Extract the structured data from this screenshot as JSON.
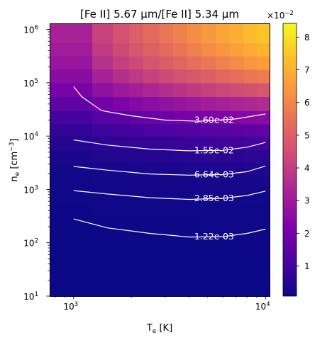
{
  "chart_data": {
    "type": "heatmap",
    "title": "[Fe II] 5.67 μm/[Fe II] 5.34 μm",
    "xlabel": "T_e [K]",
    "ylabel": "n_e [cm^-3]",
    "x_scale": "log",
    "y_scale": "log",
    "xlim": [
      750,
      10500
    ],
    "ylim": [
      10,
      1300000
    ],
    "x_ticks": [
      {
        "value": 1000,
        "label": "10",
        "exp": "3"
      },
      {
        "value": 10000,
        "label": "10",
        "exp": "4"
      }
    ],
    "y_ticks": [
      {
        "value": 10,
        "label": "10",
        "exp": "1"
      },
      {
        "value": 100,
        "label": "10",
        "exp": "2"
      },
      {
        "value": 1000,
        "label": "10",
        "exp": "3"
      },
      {
        "value": 10000,
        "label": "10",
        "exp": "4"
      },
      {
        "value": 100000,
        "label": "10",
        "exp": "5"
      },
      {
        "value": 1000000,
        "label": "10",
        "exp": "6"
      }
    ],
    "x_edges": [
      750,
      1250,
      1600,
      1950,
      2300,
      2800,
      3300,
      3900,
      4600,
      5500,
      6500,
      7700,
      9000,
      10500
    ],
    "y_edges": [
      10,
      17,
      30,
      55,
      100,
      180,
      320,
      560,
      1000,
      1800,
      3200,
      5600,
      10000,
      17000,
      30000,
      55000,
      100000,
      180000,
      320000,
      560000,
      1300000
    ],
    "colormap": "plasma",
    "grid": false,
    "colorbar": {
      "range": [
        0.0008,
        0.0842
      ],
      "ticks": [
        {
          "value": 0.01,
          "label": "1"
        },
        {
          "value": 0.02,
          "label": "2"
        },
        {
          "value": 0.03,
          "label": "3"
        },
        {
          "value": 0.04,
          "label": "4"
        },
        {
          "value": 0.05,
          "label": "5"
        },
        {
          "value": 0.06,
          "label": "6"
        },
        {
          "value": 0.07,
          "label": "7"
        },
        {
          "value": 0.08,
          "label": "8"
        }
      ],
      "multiplier": "×10",
      "multiplier_exp": "−2"
    },
    "contours": [
      {
        "label": "3.60e-02",
        "points": [
          [
            1000,
            85000
          ],
          [
            1100,
            55000
          ],
          [
            1400,
            30000
          ],
          [
            2000,
            24000
          ],
          [
            3000,
            20000
          ],
          [
            4500,
            19000
          ],
          [
            7000,
            21000
          ],
          [
            10000,
            26000
          ]
        ]
      },
      {
        "label": "1.55e-02",
        "points": [
          [
            1000,
            8500
          ],
          [
            1500,
            6800
          ],
          [
            2500,
            5700
          ],
          [
            4000,
            5300
          ],
          [
            6000,
            5400
          ],
          [
            8000,
            6200
          ],
          [
            10000,
            7600
          ]
        ]
      },
      {
        "label": "6.64e-03",
        "points": [
          [
            1000,
            2700
          ],
          [
            1500,
            2300
          ],
          [
            2500,
            1950
          ],
          [
            4000,
            1850
          ],
          [
            6000,
            1900
          ],
          [
            8000,
            2150
          ],
          [
            10000,
            2750
          ]
        ]
      },
      {
        "label": "2.85e-03",
        "points": [
          [
            1000,
            950
          ],
          [
            1500,
            820
          ],
          [
            2500,
            700
          ],
          [
            4000,
            650
          ],
          [
            6000,
            680
          ],
          [
            8000,
            770
          ],
          [
            10000,
            930
          ]
        ]
      },
      {
        "label": "1.22e-03",
        "points": [
          [
            1000,
            280
          ],
          [
            1500,
            190
          ],
          [
            2500,
            150
          ],
          [
            4000,
            128
          ],
          [
            6000,
            130
          ],
          [
            8000,
            150
          ],
          [
            10000,
            180
          ]
        ]
      }
    ]
  }
}
